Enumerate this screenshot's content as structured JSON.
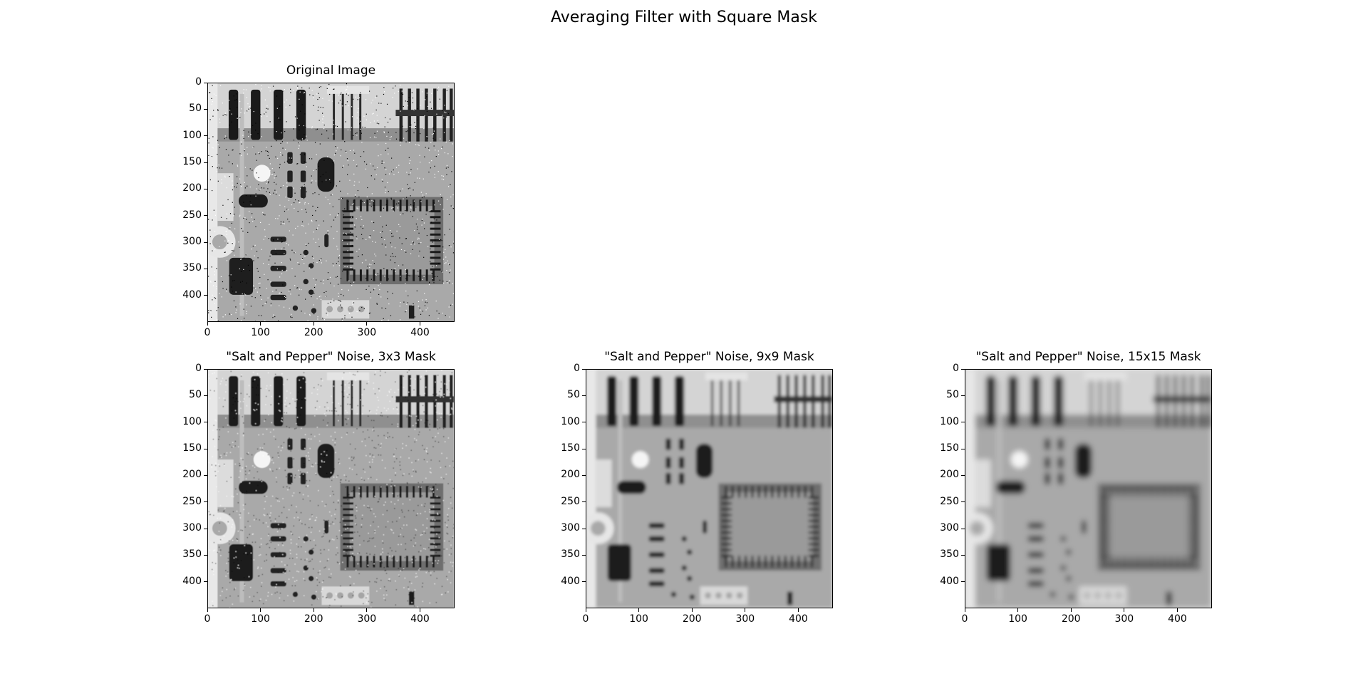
{
  "figure": {
    "suptitle": "Averaging Filter with Square Mask"
  },
  "panels": [
    {
      "id": "original",
      "title": "Original Image",
      "blur": 0,
      "noise": true
    },
    {
      "id": "mask3",
      "title": "\"Salt and Pepper\" Noise, 3x3 Mask",
      "blur": 0.6,
      "noise": true
    },
    {
      "id": "mask9",
      "title": "\"Salt and Pepper\" Noise, 9x9 Mask",
      "blur": 3,
      "noise": false
    },
    {
      "id": "mask15",
      "title": "\"Salt and Pepper\" Noise, 15x15 Mask",
      "blur": 5.5,
      "noise": false
    }
  ],
  "chart_data": [
    {
      "type": "heatmap",
      "title": "Original Image",
      "colormap": "gray",
      "xlim": [
        0,
        465
      ],
      "ylim": [
        450,
        0
      ],
      "xticks": [
        0,
        100,
        200,
        300,
        400
      ],
      "yticks": [
        0,
        50,
        100,
        150,
        200,
        250,
        300,
        350,
        400
      ]
    },
    {
      "type": "heatmap",
      "title": "\"Salt and Pepper\" Noise, 3x3 Mask",
      "colormap": "gray",
      "xlim": [
        0,
        465
      ],
      "ylim": [
        450,
        0
      ],
      "xticks": [
        0,
        100,
        200,
        300,
        400
      ],
      "yticks": [
        0,
        50,
        100,
        150,
        200,
        250,
        300,
        350,
        400
      ]
    },
    {
      "type": "heatmap",
      "title": "\"Salt and Pepper\" Noise, 9x9 Mask",
      "colormap": "gray",
      "xlim": [
        0,
        465
      ],
      "ylim": [
        450,
        0
      ],
      "xticks": [
        0,
        100,
        200,
        300,
        400
      ],
      "yticks": [
        0,
        50,
        100,
        150,
        200,
        250,
        300,
        350,
        400
      ]
    },
    {
      "type": "heatmap",
      "title": "\"Salt and Pepper\" Noise, 15x15 Mask",
      "colormap": "gray",
      "xlim": [
        0,
        465
      ],
      "ylim": [
        450,
        0
      ],
      "xticks": [
        0,
        100,
        200,
        300,
        400
      ],
      "yticks": [
        0,
        50,
        100,
        150,
        200,
        250,
        300,
        350,
        400
      ]
    }
  ]
}
